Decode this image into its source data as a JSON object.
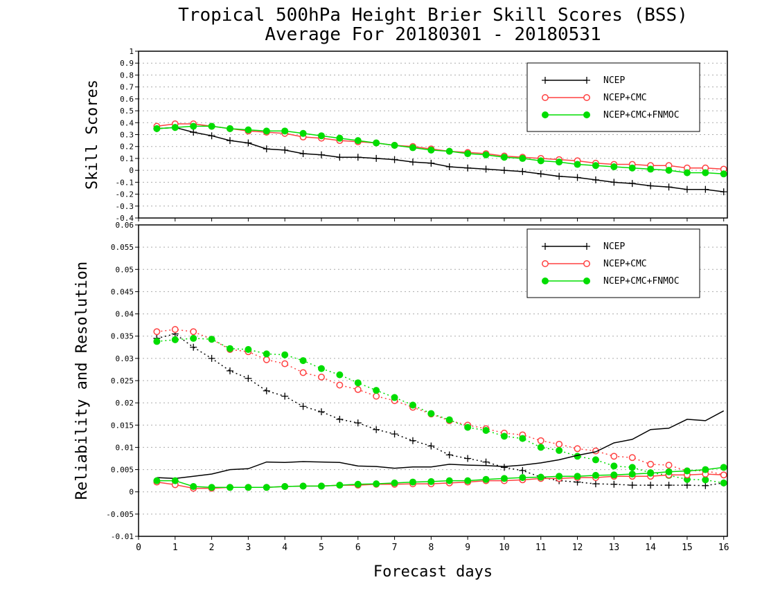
{
  "title_line1": "Tropical 500hPa Height Brier Skill Scores (BSS)",
  "title_line2": "Average For 20180301 - 20180531",
  "xlabel": "Forecast days",
  "colors": {
    "ncep": "#000000",
    "ncep_cmc": "#ff4040",
    "ncep_cmc_fnmoc": "#00dd00",
    "grid": "#aaaaaa"
  },
  "chart_data": [
    {
      "type": "line",
      "ylabel": "Skill Scores",
      "xlim": [
        0,
        16.1
      ],
      "ylim": [
        -0.4,
        1
      ],
      "yticks": [
        "-0.4",
        "-0.3",
        "-0.2",
        "-0.1",
        "0",
        "0.1",
        "0.2",
        "0.3",
        "0.4",
        "0.5",
        "0.6",
        "0.7",
        "0.8",
        "0.9",
        "1"
      ],
      "xticks": [
        "0",
        "1",
        "2",
        "3",
        "4",
        "5",
        "6",
        "7",
        "8",
        "9",
        "10",
        "11",
        "12",
        "13",
        "14",
        "15",
        "16"
      ],
      "grid": true,
      "legend_position": "top-right",
      "x": [
        0.5,
        1,
        1.5,
        2,
        2.5,
        3,
        3.5,
        4,
        4.5,
        5,
        5.5,
        6,
        6.5,
        7,
        7.5,
        8,
        8.5,
        9,
        9.5,
        10,
        10.5,
        11,
        11.5,
        12,
        12.5,
        13,
        13.5,
        14,
        14.5,
        15,
        15.5,
        16
      ],
      "series": [
        {
          "name": "NCEP",
          "color_key": "ncep",
          "marker": "plus",
          "style": "solid",
          "values": [
            0.35,
            0.36,
            0.32,
            0.29,
            0.25,
            0.23,
            0.18,
            0.17,
            0.14,
            0.13,
            0.11,
            0.11,
            0.1,
            0.09,
            0.07,
            0.06,
            0.03,
            0.02,
            0.01,
            0.0,
            -0.01,
            -0.03,
            -0.05,
            -0.06,
            -0.08,
            -0.1,
            -0.11,
            -0.13,
            -0.14,
            -0.16,
            -0.16,
            -0.18
          ]
        },
        {
          "name": "NCEP+CMC",
          "color_key": "ncep_cmc",
          "marker": "open-circle",
          "style": "solid",
          "values": [
            0.37,
            0.39,
            0.39,
            0.37,
            0.35,
            0.33,
            0.32,
            0.31,
            0.28,
            0.27,
            0.25,
            0.24,
            0.23,
            0.21,
            0.2,
            0.18,
            0.16,
            0.15,
            0.14,
            0.12,
            0.11,
            0.1,
            0.09,
            0.08,
            0.06,
            0.05,
            0.05,
            0.04,
            0.04,
            0.02,
            0.02,
            0.01
          ]
        },
        {
          "name": "NCEP+CMC+FNMOC",
          "color_key": "ncep_cmc_fnmoc",
          "marker": "filled-circle",
          "style": "solid",
          "values": [
            0.35,
            0.36,
            0.37,
            0.37,
            0.35,
            0.34,
            0.33,
            0.33,
            0.31,
            0.29,
            0.27,
            0.25,
            0.23,
            0.21,
            0.19,
            0.17,
            0.16,
            0.14,
            0.13,
            0.11,
            0.1,
            0.08,
            0.07,
            0.05,
            0.04,
            0.03,
            0.02,
            0.01,
            0.0,
            -0.02,
            -0.02,
            -0.03
          ]
        }
      ]
    },
    {
      "type": "line",
      "ylabel": "Reliability and Resolution",
      "xlim": [
        0,
        16.1
      ],
      "ylim": [
        -0.01,
        0.06
      ],
      "yticks": [
        "-0.01",
        "-0.005",
        "0",
        "0.005",
        "0.01",
        "0.015",
        "0.02",
        "0.025",
        "0.03",
        "0.035",
        "0.04",
        "0.045",
        "0.05",
        "0.055",
        "0.06"
      ],
      "xticks": [
        "0",
        "1",
        "2",
        "3",
        "4",
        "5",
        "6",
        "7",
        "8",
        "9",
        "10",
        "11",
        "12",
        "13",
        "14",
        "15",
        "16"
      ],
      "grid": true,
      "legend_position": "top-right",
      "x": [
        0.5,
        1,
        1.5,
        2,
        2.5,
        3,
        3.5,
        4,
        4.5,
        5,
        5.5,
        6,
        6.5,
        7,
        7.5,
        8,
        8.5,
        9,
        9.5,
        10,
        10.5,
        11,
        11.5,
        12,
        12.5,
        13,
        13.5,
        14,
        14.5,
        15,
        15.5,
        16
      ],
      "series": [
        {
          "name": "NCEP",
          "color_key": "ncep",
          "marker": "plus",
          "style": "dotted",
          "legend": false,
          "values": [
            0.0345,
            0.0355,
            0.0325,
            0.03,
            0.0272,
            0.0255,
            0.0227,
            0.0215,
            0.0192,
            0.018,
            0.0163,
            0.0155,
            0.014,
            0.013,
            0.0115,
            0.0103,
            0.0083,
            0.0075,
            0.0067,
            0.0055,
            0.0048,
            0.0033,
            0.0025,
            0.0022,
            0.0018,
            0.0017,
            0.0015,
            0.0015,
            0.0015,
            0.0015,
            0.0014,
            0.002
          ]
        },
        {
          "name": "NCEP+CMC",
          "color_key": "ncep_cmc",
          "marker": "open-circle",
          "style": "dotted",
          "legend": false,
          "values": [
            0.036,
            0.0365,
            0.036,
            0.0343,
            0.032,
            0.0315,
            0.0297,
            0.0288,
            0.0268,
            0.0258,
            0.024,
            0.023,
            0.0215,
            0.0205,
            0.019,
            0.0175,
            0.016,
            0.015,
            0.0142,
            0.0132,
            0.0128,
            0.0115,
            0.0107,
            0.0097,
            0.0092,
            0.008,
            0.0077,
            0.0062,
            0.006,
            0.0047,
            0.0048,
            0.0038
          ]
        },
        {
          "name": "NCEP+CMC+FNMOC",
          "color_key": "ncep_cmc_fnmoc",
          "marker": "filled-circle",
          "style": "dotted",
          "legend": false,
          "values": [
            0.0338,
            0.0342,
            0.0345,
            0.0343,
            0.0322,
            0.032,
            0.031,
            0.0308,
            0.0295,
            0.0277,
            0.0263,
            0.0245,
            0.0228,
            0.0212,
            0.0195,
            0.0176,
            0.0162,
            0.0145,
            0.0138,
            0.0125,
            0.012,
            0.01,
            0.0093,
            0.008,
            0.0072,
            0.0058,
            0.0055,
            0.0043,
            0.0037,
            0.0028,
            0.0027,
            0.002
          ]
        },
        {
          "name": "NCEP",
          "color_key": "ncep",
          "marker": "none",
          "style": "solid",
          "values": [
            0.0032,
            0.003,
            0.0035,
            0.004,
            0.005,
            0.0052,
            0.0067,
            0.0066,
            0.0068,
            0.0067,
            0.0066,
            0.0058,
            0.0057,
            0.0053,
            0.0056,
            0.0056,
            0.0062,
            0.006,
            0.0059,
            0.0057,
            0.006,
            0.0065,
            0.0072,
            0.0082,
            0.009,
            0.011,
            0.0118,
            0.014,
            0.0143,
            0.0163,
            0.016,
            0.0182
          ]
        },
        {
          "name": "NCEP+CMC",
          "color_key": "ncep_cmc",
          "marker": "open-circle",
          "style": "solid",
          "values": [
            0.0022,
            0.0016,
            0.0008,
            0.0008,
            0.001,
            0.001,
            0.001,
            0.0012,
            0.0013,
            0.0013,
            0.0015,
            0.0015,
            0.0017,
            0.0017,
            0.0018,
            0.0018,
            0.002,
            0.0022,
            0.0025,
            0.0025,
            0.0027,
            0.003,
            0.003,
            0.0032,
            0.0032,
            0.0035,
            0.0035,
            0.0035,
            0.0038,
            0.0038,
            0.004,
            0.0038
          ]
        },
        {
          "name": "NCEP+CMC+FNMOC",
          "color_key": "ncep_cmc_fnmoc",
          "marker": "filled-circle",
          "style": "solid",
          "values": [
            0.0025,
            0.0025,
            0.0012,
            0.001,
            0.001,
            0.001,
            0.001,
            0.0012,
            0.0013,
            0.0013,
            0.0015,
            0.0017,
            0.0018,
            0.002,
            0.0022,
            0.0023,
            0.0025,
            0.0025,
            0.0028,
            0.003,
            0.0032,
            0.0033,
            0.0035,
            0.0035,
            0.0037,
            0.0038,
            0.004,
            0.0042,
            0.0045,
            0.0047,
            0.005,
            0.0055
          ]
        }
      ]
    }
  ]
}
